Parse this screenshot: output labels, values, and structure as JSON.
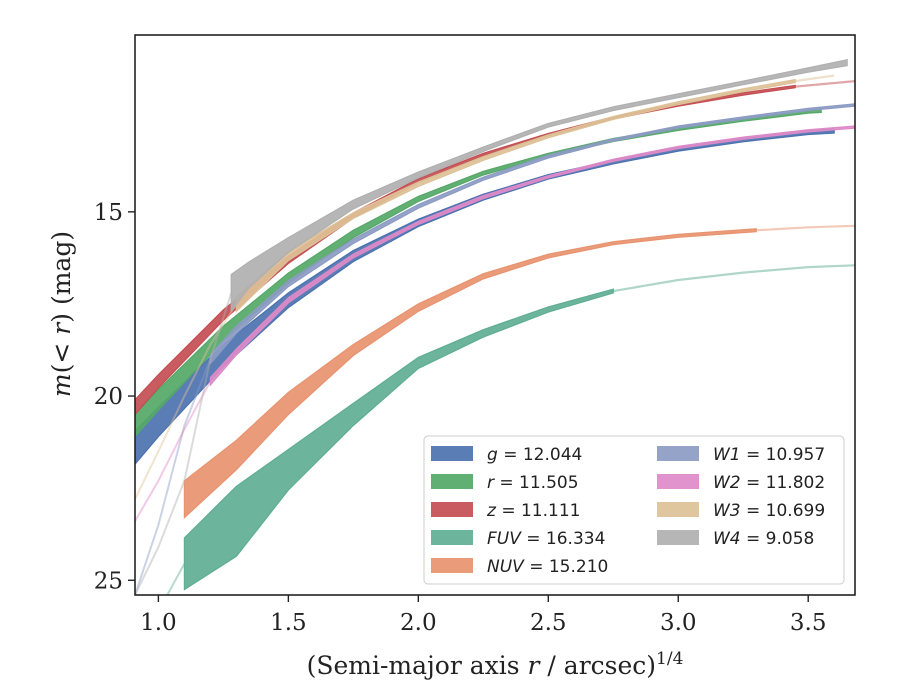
{
  "chart_data": {
    "type": "line",
    "xlabel_main": "(Semi-major axis ",
    "xlabel_var": "r",
    "xlabel_unit": " / arcsec)",
    "xlabel_exp": "1/4",
    "ylabel_m": "m",
    "ylabel_open": "(",
    "ylabel_lt": "< ",
    "ylabel_r": "r",
    "ylabel_close": ") (mag)",
    "xlim": [
      0.91,
      3.68
    ],
    "ylim": [
      25.4,
      10.2
    ],
    "y_inverted": true,
    "xticks": [
      1.0,
      1.5,
      2.0,
      2.5,
      3.0,
      3.5
    ],
    "xtick_labels": [
      "1.0",
      "1.5",
      "2.0",
      "2.5",
      "3.0",
      "3.5"
    ],
    "yticks": [
      15,
      20,
      25
    ],
    "ytick_labels": [
      "15",
      "20",
      "25"
    ],
    "grid": false,
    "legend_position": "lower-right",
    "series": [
      {
        "name": "g = 12.044",
        "label_var": "g",
        "label_value": "12.044",
        "color": "#4c72b0",
        "x": [
          0.91,
          1.0,
          1.25,
          1.5,
          1.75,
          2.0,
          2.25,
          2.5,
          2.75,
          3.0,
          3.25,
          3.5,
          3.6
        ],
        "y": [
          21.4,
          20.7,
          18.9,
          17.4,
          16.2,
          15.3,
          14.6,
          14.05,
          13.65,
          13.3,
          13.05,
          12.85,
          12.8
        ],
        "band": [
          0.45,
          0.4,
          0.3,
          0.2,
          0.15,
          0.1,
          0.08,
          0.06,
          0.05,
          0.05,
          0.05,
          0.05,
          0.06
        ],
        "fade_after": 3.6
      },
      {
        "name": "r = 11.505",
        "label_var": "r",
        "label_value": "11.505",
        "color": "#55a868",
        "x": [
          0.91,
          1.0,
          1.25,
          1.5,
          1.75,
          2.0,
          2.25,
          2.5,
          2.75,
          3.0,
          3.25,
          3.5,
          3.55
        ],
        "y": [
          20.8,
          20.1,
          18.3,
          16.8,
          15.6,
          14.65,
          13.95,
          13.45,
          13.05,
          12.75,
          12.5,
          12.28,
          12.25
        ],
        "band": [
          0.3,
          0.28,
          0.2,
          0.14,
          0.1,
          0.07,
          0.05,
          0.04,
          0.04,
          0.04,
          0.04,
          0.04,
          0.05
        ],
        "fade_after": 3.55
      },
      {
        "name": "z = 11.111",
        "label_var": "z",
        "label_value": "11.111",
        "color": "#c44e52",
        "x": [
          0.91,
          1.0,
          1.25,
          1.5,
          1.75,
          2.0,
          2.25,
          2.5,
          2.75,
          3.0,
          3.25,
          3.45,
          3.68
        ],
        "y": [
          20.3,
          19.6,
          17.8,
          16.3,
          15.1,
          14.15,
          13.45,
          12.9,
          12.45,
          12.1,
          11.8,
          11.6,
          11.45
        ],
        "band": [
          0.2,
          0.18,
          0.14,
          0.1,
          0.07,
          0.05,
          0.04,
          0.03,
          0.03,
          0.03,
          0.03,
          0.03,
          0.03
        ],
        "fade_after": 3.45
      },
      {
        "name": "FUV = 16.334",
        "label_var": "FUV",
        "label_value": "16.334",
        "color": "#5fae92",
        "x": [
          1.1,
          1.3,
          1.5,
          1.75,
          2.0,
          2.25,
          2.5,
          2.75,
          3.0,
          3.25,
          3.5,
          3.68
        ],
        "y": [
          24.55,
          23.4,
          22.0,
          20.5,
          19.1,
          18.3,
          17.65,
          17.15,
          16.85,
          16.65,
          16.5,
          16.45
        ],
        "band": [
          0.7,
          0.95,
          0.55,
          0.3,
          0.15,
          0.1,
          0.07,
          0.05,
          0.05,
          0.05,
          0.05,
          0.05
        ],
        "fade_after": 2.75,
        "tail_x": [
          0.91,
          1.1
        ],
        "tail_y": [
          27.0,
          24.55
        ]
      },
      {
        "name": "NUV = 15.210",
        "label_var": "NUV",
        "label_value": "15.210",
        "color": "#e8936f",
        "x": [
          1.1,
          1.3,
          1.5,
          1.75,
          2.0,
          2.25,
          2.5,
          2.75,
          3.0,
          3.3,
          3.5,
          3.68
        ],
        "y": [
          22.8,
          21.6,
          20.2,
          18.75,
          17.6,
          16.75,
          16.2,
          15.85,
          15.65,
          15.5,
          15.42,
          15.38
        ],
        "band": [
          0.5,
          0.4,
          0.3,
          0.15,
          0.1,
          0.07,
          0.05,
          0.04,
          0.04,
          0.04,
          0.04,
          0.04
        ],
        "fade_after": 3.3,
        "tail_x": [],
        "tail_y": []
      },
      {
        "name": "W1 = 10.957",
        "label_var": "W1",
        "label_value": "10.957",
        "color": "#8c9bc3",
        "x": [
          1.2,
          1.3,
          1.5,
          1.75,
          2.0,
          2.25,
          2.5,
          2.75,
          3.0,
          3.25,
          3.5,
          3.68
        ],
        "y": [
          19.0,
          18.2,
          16.95,
          15.8,
          14.85,
          14.1,
          13.5,
          13.05,
          12.7,
          12.45,
          12.22,
          12.1
        ],
        "band": [
          0.12,
          0.1,
          0.08,
          0.06,
          0.05,
          0.04,
          0.04,
          0.03,
          0.03,
          0.03,
          0.03,
          0.03
        ],
        "fade_after": 3.68,
        "tail_x": [
          0.91,
          1.0,
          1.1,
          1.2
        ],
        "tail_y": [
          25.4,
          23.5,
          20.8,
          19.0
        ]
      },
      {
        "name": "W2 = 11.802",
        "label_var": "W2",
        "label_value": "11.802",
        "color": "#dd8ac8",
        "x": [
          1.2,
          1.3,
          1.5,
          1.75,
          2.0,
          2.25,
          2.5,
          2.75,
          3.0,
          3.25,
          3.5,
          3.68
        ],
        "y": [
          19.6,
          18.8,
          17.4,
          16.2,
          15.3,
          14.6,
          14.05,
          13.6,
          13.25,
          13.0,
          12.8,
          12.7
        ],
        "band": [
          0.1,
          0.08,
          0.07,
          0.05,
          0.04,
          0.04,
          0.03,
          0.03,
          0.03,
          0.03,
          0.03,
          0.03
        ],
        "fade_after": 3.68,
        "tail_x": [
          0.91,
          1.0,
          1.1,
          1.2
        ],
        "tail_y": [
          23.4,
          22.3,
          20.9,
          19.6
        ]
      },
      {
        "name": "W3 = 10.699",
        "label_var": "W3",
        "label_value": "10.699",
        "color": "#ddc197",
        "x": [
          1.3,
          1.5,
          1.75,
          2.0,
          2.25,
          2.5,
          2.75,
          3.0,
          3.25,
          3.45,
          3.6
        ],
        "y": [
          17.5,
          16.2,
          15.1,
          14.25,
          13.55,
          12.95,
          12.45,
          12.05,
          11.7,
          11.45,
          11.3
        ],
        "band": [
          0.2,
          0.12,
          0.08,
          0.06,
          0.05,
          0.04,
          0.04,
          0.04,
          0.04,
          0.04,
          0.05
        ],
        "fade_after": 3.45,
        "tail_x": [
          0.91,
          1.0,
          1.1,
          1.2,
          1.3
        ],
        "tail_y": [
          22.8,
          21.5,
          20.0,
          18.6,
          17.5
        ]
      },
      {
        "name": "W4 = 9.058",
        "label_var": "W4",
        "label_value": "9.058",
        "color": "#b0b0b0",
        "x": [
          1.28,
          1.35,
          1.5,
          1.75,
          2.0,
          2.25,
          2.5,
          2.75,
          3.0,
          3.25,
          3.5,
          3.65
        ],
        "y": [
          17.2,
          16.7,
          15.9,
          14.8,
          14.0,
          13.3,
          12.65,
          12.2,
          11.85,
          11.5,
          11.15,
          10.95
        ],
        "band": [
          0.5,
          0.35,
          0.2,
          0.12,
          0.08,
          0.06,
          0.05,
          0.05,
          0.05,
          0.05,
          0.06,
          0.08
        ],
        "fade_after": 3.65,
        "tail_x": [
          0.91,
          1.0,
          1.1,
          1.2,
          1.28
        ],
        "tail_y": [
          25.4,
          24.1,
          22.3,
          19.0,
          17.2
        ]
      }
    ]
  }
}
